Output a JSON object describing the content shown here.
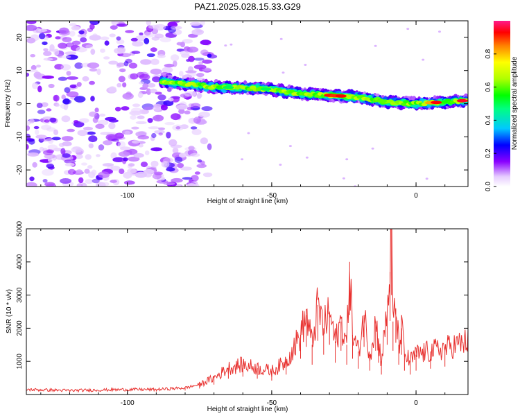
{
  "title": "PAZ1.2025.028.15.33.G29",
  "colors": {
    "snr_line": "#e8302e",
    "axis": "#000000"
  },
  "chart_data": [
    {
      "type": "heatmap",
      "xlabel": "Height of straight line (km)",
      "ylabel": "Frequency (Hz)",
      "xlim": [
        -135,
        18
      ],
      "ylim": [
        -25,
        25
      ],
      "xticks": [
        "-100",
        "-50",
        "0"
      ],
      "yticks": [
        "-20",
        "-10",
        "0",
        "10",
        "20"
      ],
      "colorbar": {
        "label": "Normalized spectral amplitude",
        "range": [
          0,
          1
        ],
        "ticks": [
          "0.0",
          "0.2",
          "0.4",
          "0.6",
          "0.8"
        ]
      },
      "ridge": {
        "x": [
          -88,
          -80,
          -70,
          -60,
          -50,
          -40,
          -30,
          -20,
          -10,
          0,
          10,
          18
        ],
        "y": [
          6.5,
          6,
          5,
          4.8,
          4.3,
          3,
          2.5,
          2,
          0.5,
          0,
          0.5,
          1
        ]
      }
    },
    {
      "type": "line",
      "xlabel": "Height of straight line (km)",
      "ylabel": "SNR (10 * v/v)",
      "xlim": [
        -135,
        18
      ],
      "ylim": [
        0,
        5000
      ],
      "xticks": [
        "-100",
        "-50",
        "0"
      ],
      "yticks": [
        "1000",
        "2000",
        "3000",
        "4000",
        "5000"
      ],
      "x": [
        -135,
        -120,
        -100,
        -90,
        -80,
        -75,
        -70,
        -65,
        -60,
        -55,
        -50,
        -45,
        -40,
        -38,
        -36,
        -34,
        -32,
        -30,
        -28,
        -26,
        -24,
        -23,
        -22,
        -20,
        -18,
        -16,
        -14,
        -13,
        -12,
        -10,
        -9,
        -8.5,
        -8,
        -7,
        -6,
        -5,
        -4,
        -2,
        0,
        5,
        10,
        18
      ],
      "y": [
        150,
        120,
        150,
        150,
        200,
        300,
        500,
        800,
        900,
        800,
        700,
        1000,
        1800,
        2400,
        1500,
        2700,
        2000,
        2500,
        1600,
        2200,
        1500,
        4000,
        1800,
        1300,
        2400,
        1200,
        2200,
        1600,
        1000,
        2500,
        3700,
        5000,
        2200,
        2600,
        1500,
        2000,
        1200,
        1000,
        1200,
        1300,
        1400,
        1600
      ]
    }
  ]
}
